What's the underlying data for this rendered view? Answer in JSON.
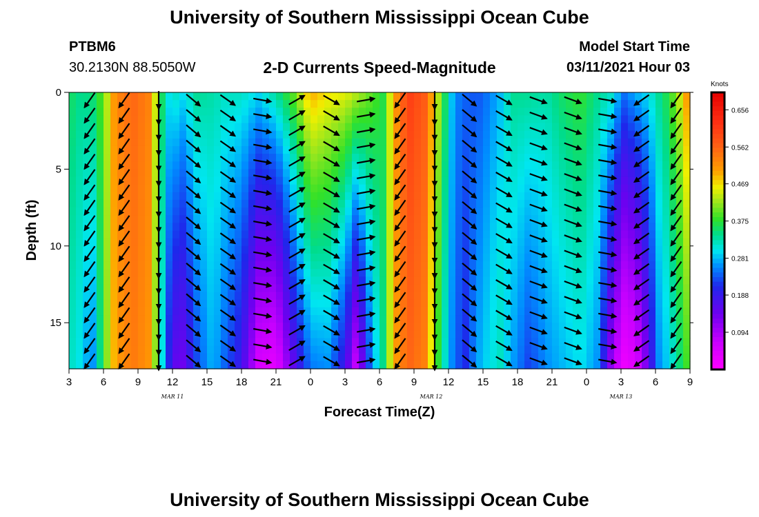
{
  "page": {
    "title_top": "University of Southern Mississippi Ocean Cube",
    "title_bottom": "University of Southern Mississippi Ocean Cube",
    "station": "PTBM6",
    "coords": "30.2130N 88.5050W",
    "subtitle": "2-D Currents Speed-Magnitude",
    "model_label": "Model Start Time",
    "model_time": "03/11/2021 Hour 03"
  },
  "chart_data": {
    "type": "heatmap",
    "title": "2-D Currents Speed-Magnitude",
    "xlabel": "Forecast Time(Z)",
    "ylabel": "Depth (ft)",
    "x_range": [
      3,
      57
    ],
    "x_ticks": [
      {
        "hour": 3,
        "label": "3"
      },
      {
        "hour": 6,
        "label": "6"
      },
      {
        "hour": 9,
        "label": "9"
      },
      {
        "hour": 12,
        "label": "12"
      },
      {
        "hour": 15,
        "label": "15"
      },
      {
        "hour": 18,
        "label": "18"
      },
      {
        "hour": 21,
        "label": "21"
      },
      {
        "hour": 24,
        "label": "0"
      },
      {
        "hour": 27,
        "label": "3"
      },
      {
        "hour": 30,
        "label": "6"
      },
      {
        "hour": 33,
        "label": "9"
      },
      {
        "hour": 36,
        "label": "12"
      },
      {
        "hour": 39,
        "label": "15"
      },
      {
        "hour": 42,
        "label": "18"
      },
      {
        "hour": 45,
        "label": "21"
      },
      {
        "hour": 48,
        "label": "0"
      },
      {
        "hour": 51,
        "label": "3"
      },
      {
        "hour": 54,
        "label": "6"
      },
      {
        "hour": 57,
        "label": "9"
      }
    ],
    "date_labels": [
      {
        "hour": 12,
        "label": "MAR 11"
      },
      {
        "hour": 34.5,
        "label": "MAR 12"
      },
      {
        "hour": 51,
        "label": "MAR 13"
      }
    ],
    "y_range": [
      0,
      18
    ],
    "y_ticks": [
      0,
      5,
      10,
      15
    ],
    "y_inverted": true,
    "colorbar": {
      "unit": "Knots",
      "min": 0.0,
      "max": 0.7,
      "ticks": [
        "0.656",
        "0.562",
        "0.469",
        "0.375",
        "0.281",
        "0.188",
        "0.094"
      ]
    },
    "speed_profile_columns": [
      {
        "hour": 3,
        "surface": 0.36,
        "deep": 0.32
      },
      {
        "hour": 4,
        "surface": 0.34,
        "deep": 0.3
      },
      {
        "hour": 5,
        "surface": 0.35,
        "deep": 0.25
      },
      {
        "hour": 6,
        "surface": 0.4,
        "deep": 0.38
      },
      {
        "hour": 7,
        "surface": 0.52,
        "deep": 0.5
      },
      {
        "hour": 8.5,
        "surface": 0.56,
        "deep": 0.54
      },
      {
        "hour": 10,
        "surface": 0.53,
        "deep": 0.51
      },
      {
        "hour": 10.8,
        "surface": 0.4,
        "deep": 0.36
      },
      {
        "hour": 11.5,
        "surface": 0.3,
        "deep": 0.22
      },
      {
        "hour": 12.2,
        "surface": 0.32,
        "deep": 0.15
      },
      {
        "hour": 13,
        "surface": 0.3,
        "deep": 0.14
      },
      {
        "hour": 14,
        "surface": 0.34,
        "deep": 0.22
      },
      {
        "hour": 15.5,
        "surface": 0.33,
        "deep": 0.28
      },
      {
        "hour": 16.5,
        "surface": 0.32,
        "deep": 0.24
      },
      {
        "hour": 18,
        "surface": 0.32,
        "deep": 0.18
      },
      {
        "hour": 19.5,
        "surface": 0.3,
        "deep": 0.05
      },
      {
        "hour": 21,
        "surface": 0.34,
        "deep": 0.03
      },
      {
        "hour": 22.5,
        "surface": 0.4,
        "deep": 0.15
      },
      {
        "hour": 24,
        "surface": 0.5,
        "deep": 0.25
      },
      {
        "hour": 25.5,
        "surface": 0.47,
        "deep": 0.26
      },
      {
        "hour": 27,
        "surface": 0.46,
        "deep": 0.18
      },
      {
        "hour": 28,
        "surface": 0.44,
        "deep": 0.06
      },
      {
        "hour": 29.3,
        "surface": 0.4,
        "deep": 0.26
      },
      {
        "hour": 30.3,
        "surface": 0.37,
        "deep": 0.34
      },
      {
        "hour": 31.3,
        "surface": 0.5,
        "deep": 0.5
      },
      {
        "hour": 32.5,
        "surface": 0.61,
        "deep": 0.56
      },
      {
        "hour": 34,
        "surface": 0.57,
        "deep": 0.53
      },
      {
        "hour": 35.2,
        "surface": 0.42,
        "deep": 0.36
      },
      {
        "hour": 36.5,
        "surface": 0.26,
        "deep": 0.24
      },
      {
        "hour": 37.5,
        "surface": 0.24,
        "deep": 0.21
      },
      {
        "hour": 38.5,
        "surface": 0.23,
        "deep": 0.27
      },
      {
        "hour": 39.5,
        "surface": 0.25,
        "deep": 0.3
      },
      {
        "hour": 40.5,
        "surface": 0.28,
        "deep": 0.32
      },
      {
        "hour": 41.5,
        "surface": 0.34,
        "deep": 0.27
      },
      {
        "hour": 43,
        "surface": 0.34,
        "deep": 0.22
      },
      {
        "hour": 44.5,
        "surface": 0.33,
        "deep": 0.26
      },
      {
        "hour": 46,
        "surface": 0.36,
        "deep": 0.28
      },
      {
        "hour": 47.5,
        "surface": 0.38,
        "deep": 0.3
      },
      {
        "hour": 49,
        "surface": 0.34,
        "deep": 0.26
      },
      {
        "hour": 50.2,
        "surface": 0.32,
        "deep": 0.1
      },
      {
        "hour": 51.2,
        "surface": 0.25,
        "deep": 0.02
      },
      {
        "hour": 52.3,
        "surface": 0.28,
        "deep": 0.04
      },
      {
        "hour": 53.3,
        "surface": 0.3,
        "deep": 0.14
      },
      {
        "hour": 54.3,
        "surface": 0.34,
        "deep": 0.26
      },
      {
        "hour": 55.3,
        "surface": 0.38,
        "deep": 0.3
      },
      {
        "hour": 56.3,
        "surface": 0.46,
        "deep": 0.36
      },
      {
        "hour": 57,
        "surface": 0.54,
        "deep": 0.4
      }
    ],
    "vector_columns": [
      {
        "hour": 4.8,
        "direction_deg": 215
      },
      {
        "hour": 7.8,
        "direction_deg": 215
      },
      {
        "hour": 10.8,
        "direction_deg": 180
      },
      {
        "hour": 13.8,
        "direction_deg": 130
      },
      {
        "hour": 16.8,
        "direction_deg": 125
      },
      {
        "hour": 19.8,
        "direction_deg": 100
      },
      {
        "hour": 22.8,
        "direction_deg": 60
      },
      {
        "hour": 25.8,
        "direction_deg": 120
      },
      {
        "hour": 28.8,
        "direction_deg": 80
      },
      {
        "hour": 31.8,
        "direction_deg": 215
      },
      {
        "hour": 34.8,
        "direction_deg": 180
      },
      {
        "hour": 37.8,
        "direction_deg": 130
      },
      {
        "hour": 40.8,
        "direction_deg": 120
      },
      {
        "hour": 43.8,
        "direction_deg": 110
      },
      {
        "hour": 46.8,
        "direction_deg": 110
      },
      {
        "hour": 49.8,
        "direction_deg": 100
      },
      {
        "hour": 52.8,
        "direction_deg": 235
      },
      {
        "hour": 55.8,
        "direction_deg": 215
      }
    ]
  }
}
